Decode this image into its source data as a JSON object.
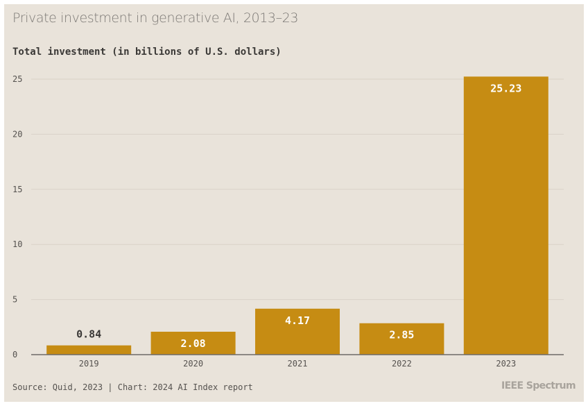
{
  "chart_data": {
    "type": "bar",
    "title": "Private investment in generative AI, 2013–23",
    "ylabel": "Total investment (in billions of U.S. dollars)",
    "xlabel": "",
    "categories": [
      "2019",
      "2020",
      "2021",
      "2022",
      "2023"
    ],
    "values": [
      0.84,
      2.08,
      4.17,
      2.85,
      25.23
    ],
    "data_labels": [
      "0.84",
      "2.08",
      "4.17",
      "2.85",
      "25.23"
    ],
    "ylim": [
      0,
      25
    ],
    "yticks": [
      "0",
      "5",
      "10",
      "15",
      "20",
      "25"
    ],
    "grid": true,
    "bar_color": "#c68c13",
    "source": "Source: Quid, 2023 | Chart: 2024 AI Index report"
  },
  "branding": {
    "logo_text": "IEEE Spectrum"
  },
  "colors": {
    "background": "#e9e3da",
    "bar": "#c68c13",
    "grid": "#d9d2c7",
    "axis": "#6e6b67",
    "label_inside": "#ffffff",
    "label_outside": "#3a3836"
  }
}
